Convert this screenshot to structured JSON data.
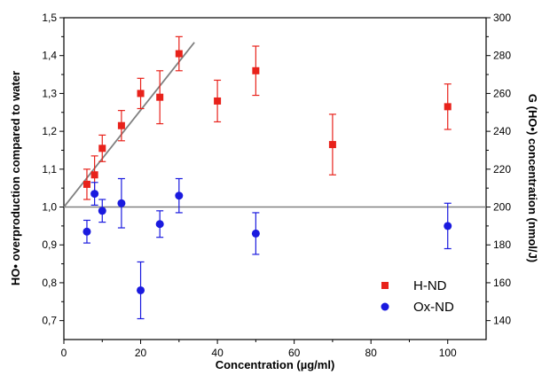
{
  "chart_data": {
    "type": "scatter",
    "title": "",
    "xlabel": "Concentration (µg/ml)",
    "ylabel_left": "HO• overproduction compared to water",
    "ylabel_right": "G (HO•) concentration (nmol/J)",
    "xlim": [
      0,
      110
    ],
    "ylim_left": [
      0.65,
      1.5
    ],
    "ylim_right": [
      130,
      300
    ],
    "x_ticks": [
      "0",
      "20",
      "40",
      "60",
      "80",
      "100"
    ],
    "y_left_ticks": [
      "0,7",
      "0,8",
      "0,9",
      "1,0",
      "1,1",
      "1,2",
      "1,3",
      "1,4",
      "1,5"
    ],
    "y_right_ticks": [
      "140",
      "160",
      "180",
      "200",
      "220",
      "240",
      "260",
      "280",
      "300"
    ],
    "grid": false,
    "legend_position": "bottom-right",
    "reference_line_y": 1.0,
    "series": [
      {
        "name": "H-ND",
        "color": "#e8221b",
        "marker": "square",
        "points": [
          {
            "x": 6,
            "y": 1.06,
            "err": 0.04
          },
          {
            "x": 8,
            "y": 1.085,
            "err": 0.05
          },
          {
            "x": 10,
            "y": 1.155,
            "err": 0.035
          },
          {
            "x": 15,
            "y": 1.215,
            "err": 0.04
          },
          {
            "x": 20,
            "y": 1.3,
            "err": 0.04
          },
          {
            "x": 25,
            "y": 1.29,
            "err": 0.07
          },
          {
            "x": 30,
            "y": 1.405,
            "err": 0.045
          },
          {
            "x": 40,
            "y": 1.28,
            "err": 0.055
          },
          {
            "x": 50,
            "y": 1.36,
            "err": 0.065
          },
          {
            "x": 70,
            "y": 1.165,
            "err": 0.08
          },
          {
            "x": 100,
            "y": 1.265,
            "err": 0.06
          }
        ],
        "fit_line": {
          "x": [
            0,
            34
          ],
          "y": [
            1.0,
            1.435
          ],
          "color": "#808080"
        }
      },
      {
        "name": "Ox-ND",
        "color": "#1a1adf",
        "marker": "circle",
        "points": [
          {
            "x": 6,
            "y": 0.935,
            "err": 0.03
          },
          {
            "x": 8,
            "y": 1.035,
            "err": 0.03
          },
          {
            "x": 10,
            "y": 0.99,
            "err": 0.03
          },
          {
            "x": 15,
            "y": 1.01,
            "err": 0.065
          },
          {
            "x": 20,
            "y": 0.78,
            "err": 0.075
          },
          {
            "x": 25,
            "y": 0.955,
            "err": 0.035
          },
          {
            "x": 30,
            "y": 1.03,
            "err": 0.045
          },
          {
            "x": 50,
            "y": 0.93,
            "err": 0.055
          },
          {
            "x": 100,
            "y": 0.95,
            "err": 0.06
          }
        ]
      }
    ]
  }
}
